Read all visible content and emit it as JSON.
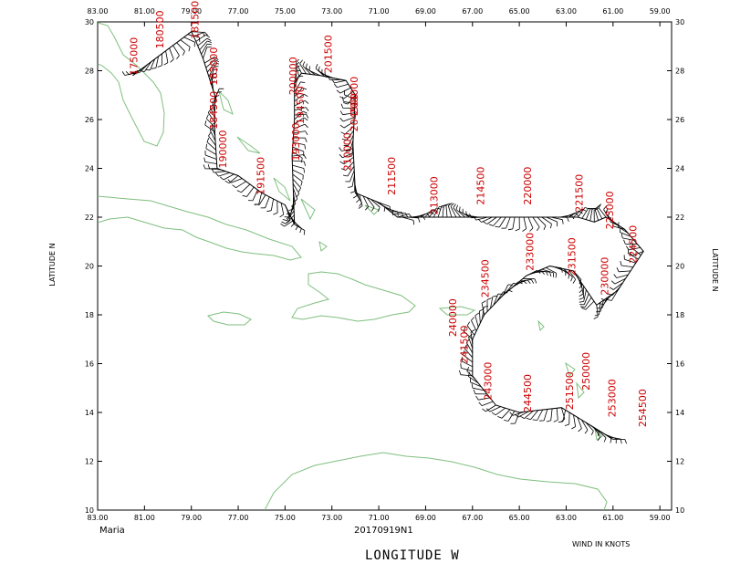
{
  "storm_name": "Maria",
  "flight_id": "20170919N1",
  "x_axis_label": "LONGITUDE   W",
  "y_axis_label": "LATITUDE   N",
  "wind_units": "WIND IN KNOTS",
  "colors": {
    "coastline": "#7fbf7f",
    "time_labels": "#cc0000",
    "track": "#000000"
  },
  "lon_ticks": [
    "83.00",
    "81.00",
    "79.00",
    "77.00",
    "75.00",
    "73.00",
    "71.00",
    "69.00",
    "67.00",
    "65.00",
    "63.00",
    "61.00",
    "59.00"
  ],
  "lat_ticks": [
    "10",
    "12",
    "14",
    "16",
    "18",
    "20",
    "22",
    "24",
    "26",
    "28",
    "30"
  ],
  "lon_range": [
    -83,
    -58.5
  ],
  "lat_range": [
    10,
    30
  ],
  "track": [
    [
      -61.0,
      12.9
    ],
    [
      -62.0,
      13.5
    ],
    [
      -63.2,
      14.2
    ],
    [
      -65.0,
      14.0
    ],
    [
      -66.0,
      14.3
    ],
    [
      -67.0,
      15.5
    ],
    [
      -67.0,
      17.0
    ],
    [
      -66.5,
      18.0
    ],
    [
      -65.7,
      18.8
    ],
    [
      -64.7,
      19.6
    ],
    [
      -63.7,
      20.0
    ],
    [
      -62.7,
      19.8
    ],
    [
      -61.7,
      18.4
    ],
    [
      -60.8,
      19.0
    ],
    [
      -59.7,
      20.6
    ],
    [
      -60.5,
      21.5
    ],
    [
      -61.3,
      22.0
    ],
    [
      -61.8,
      21.8
    ],
    [
      -62.5,
      22.0
    ],
    [
      -70.2,
      22.0
    ],
    [
      -71.0,
      22.6
    ],
    [
      -72.0,
      23.0
    ],
    [
      -72.1,
      25.0
    ],
    [
      -72.0,
      27.0
    ],
    [
      -72.4,
      27.6
    ],
    [
      -73.5,
      27.8
    ],
    [
      -74.3,
      27.9
    ],
    [
      -74.6,
      27.5
    ],
    [
      -74.6,
      26.0
    ],
    [
      -74.7,
      24.5
    ],
    [
      -74.6,
      21.7
    ],
    [
      -75.0,
      22.5
    ],
    [
      -76.0,
      23.0
    ],
    [
      -77.0,
      23.7
    ],
    [
      -77.9,
      24.0
    ],
    [
      -78.0,
      25.5
    ],
    [
      -78.0,
      27.0
    ],
    [
      -78.5,
      28.5
    ],
    [
      -78.8,
      29.2
    ],
    [
      -79.0,
      29.6
    ],
    [
      -81.5,
      27.8
    ]
  ],
  "time_labels": [
    {
      "text": "175000",
      "lon": -81.3,
      "lat": 27.8
    },
    {
      "text": "180500",
      "lon": -80.2,
      "lat": 28.9
    },
    {
      "text": "181500",
      "lon": -78.7,
      "lat": 29.3
    },
    {
      "text": "183000",
      "lon": -77.9,
      "lat": 27.4
    },
    {
      "text": "184500",
      "lon": -77.9,
      "lat": 25.6
    },
    {
      "text": "190000",
      "lon": -77.5,
      "lat": 24.0
    },
    {
      "text": "191500",
      "lon": -75.9,
      "lat": 22.9
    },
    {
      "text": "193000",
      "lon": -74.4,
      "lat": 24.3
    },
    {
      "text": "194500",
      "lon": -74.2,
      "lat": 25.8
    },
    {
      "text": "200000",
      "lon": -74.5,
      "lat": 27.0
    },
    {
      "text": "201500",
      "lon": -73.0,
      "lat": 27.9
    },
    {
      "text": "203000",
      "lon": -71.9,
      "lat": 26.2
    },
    {
      "text": "204500",
      "lon": -71.9,
      "lat": 25.5
    },
    {
      "text": "210000",
      "lon": -72.2,
      "lat": 23.9
    },
    {
      "text": "211500",
      "lon": -70.3,
      "lat": 22.9
    },
    {
      "text": "213000",
      "lon": -68.5,
      "lat": 22.1
    },
    {
      "text": "214500",
      "lon": -66.5,
      "lat": 22.5
    },
    {
      "text": "220000",
      "lon": -64.5,
      "lat": 22.5
    },
    {
      "text": "221500",
      "lon": -62.3,
      "lat": 22.2
    },
    {
      "text": "223000",
      "lon": -61.0,
      "lat": 21.5
    },
    {
      "text": "224500",
      "lon": -60.0,
      "lat": 20.1
    },
    {
      "text": "230000",
      "lon": -61.2,
      "lat": 18.8
    },
    {
      "text": "231500",
      "lon": -62.6,
      "lat": 19.6
    },
    {
      "text": "233000",
      "lon": -64.4,
      "lat": 19.8
    },
    {
      "text": "234500",
      "lon": -66.3,
      "lat": 18.7
    },
    {
      "text": "240000",
      "lon": -67.7,
      "lat": 17.1
    },
    {
      "text": "241500",
      "lon": -67.2,
      "lat": 16.0
    },
    {
      "text": "243000",
      "lon": -66.2,
      "lat": 14.5
    },
    {
      "text": "244500",
      "lon": -64.5,
      "lat": 14.0
    },
    {
      "text": "250000",
      "lon": -62.0,
      "lat": 14.9
    },
    {
      "text": "251500",
      "lon": -62.7,
      "lat": 14.1
    },
    {
      "text": "253000",
      "lon": -60.9,
      "lat": 13.8
    },
    {
      "text": "254500",
      "lon": -59.6,
      "lat": 13.4
    }
  ]
}
